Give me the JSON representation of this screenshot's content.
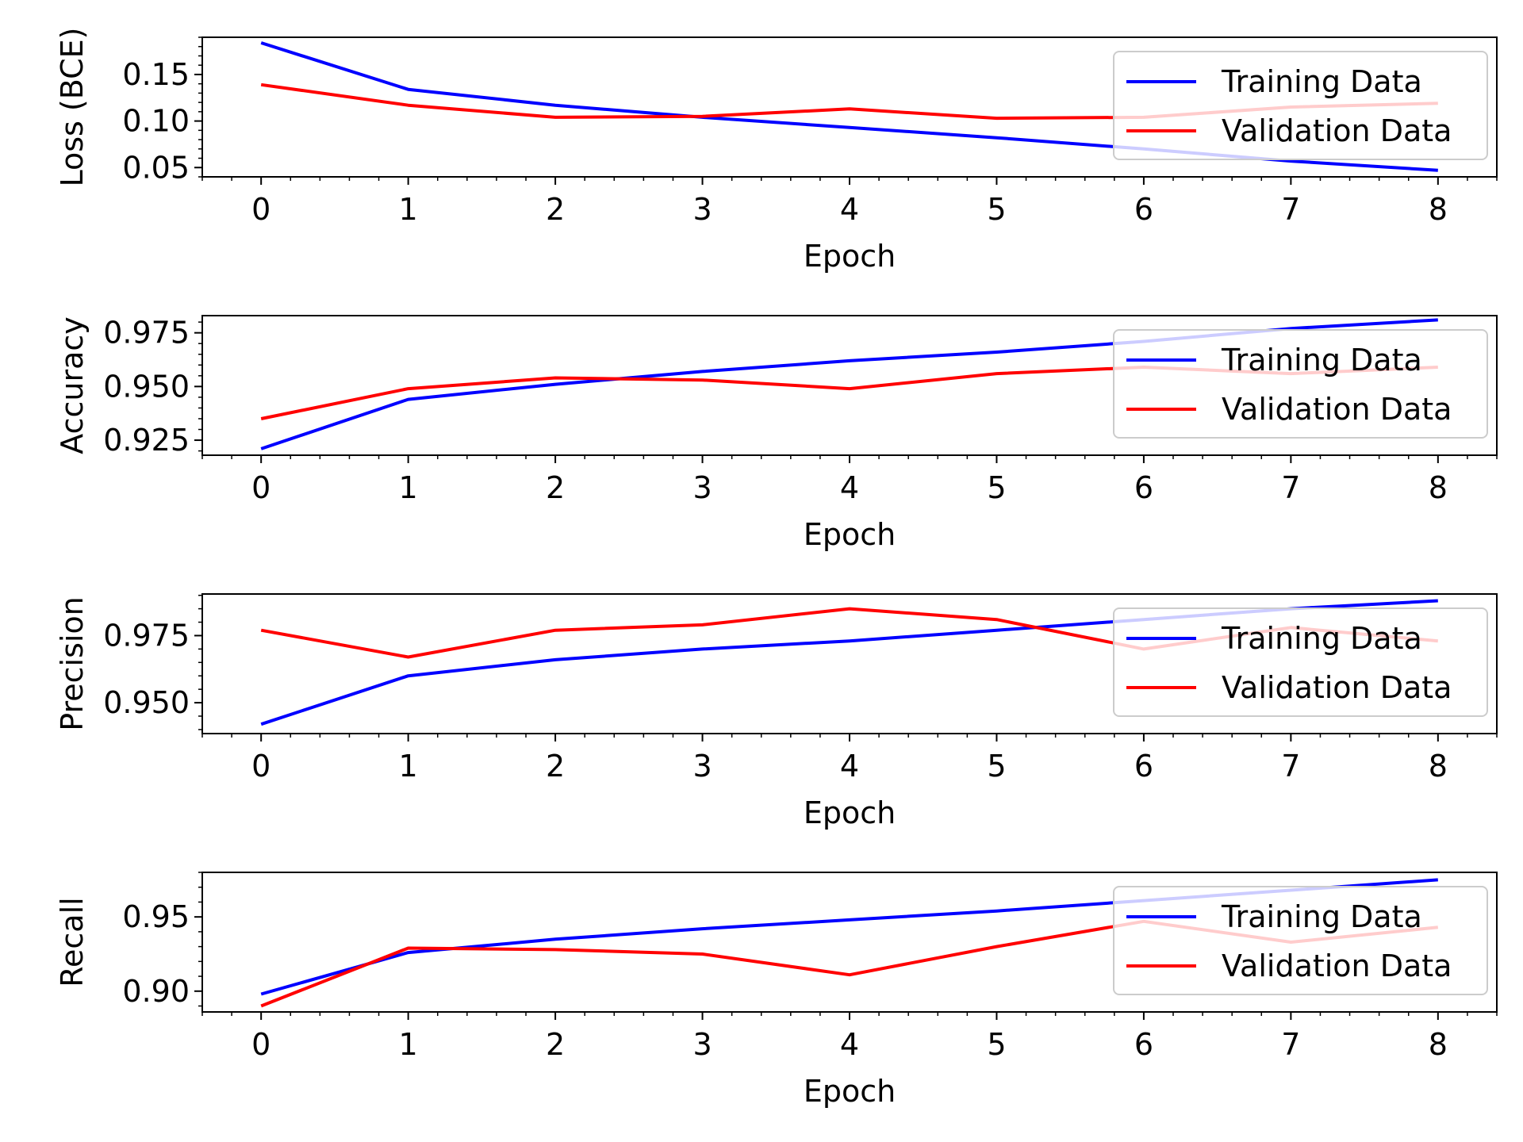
{
  "chart_data": [
    {
      "type": "line",
      "title": "",
      "xlabel": "Epoch",
      "ylabel": "Loss (BCE)",
      "x": [
        0,
        1,
        2,
        3,
        4,
        5,
        6,
        7,
        8
      ],
      "xlim": [
        -0.4,
        8.4
      ],
      "ylim": [
        0.04,
        0.19
      ],
      "yticks": [
        0.05,
        0.1,
        0.15
      ],
      "ytick_labels": [
        "0.05",
        "0.10",
        "0.15"
      ],
      "legend_position": "upper right",
      "grid": false,
      "series": [
        {
          "name": "Training Data",
          "color": "#0000ff",
          "values": [
            0.184,
            0.134,
            0.117,
            0.104,
            0.093,
            0.082,
            0.07,
            0.057,
            0.047
          ]
        },
        {
          "name": "Validation Data",
          "color": "#ff0000",
          "values": [
            0.139,
            0.117,
            0.104,
            0.105,
            0.113,
            0.103,
            0.104,
            0.115,
            0.119
          ]
        }
      ]
    },
    {
      "type": "line",
      "title": "",
      "xlabel": "Epoch",
      "ylabel": "Accuracy",
      "x": [
        0,
        1,
        2,
        3,
        4,
        5,
        6,
        7,
        8
      ],
      "xlim": [
        -0.4,
        8.4
      ],
      "ylim": [
        0.918,
        0.983
      ],
      "yticks": [
        0.925,
        0.95,
        0.975
      ],
      "ytick_labels": [
        "0.925",
        "0.950",
        "0.975"
      ],
      "legend_position": "upper right",
      "grid": false,
      "series": [
        {
          "name": "Training Data",
          "color": "#0000ff",
          "values": [
            0.921,
            0.944,
            0.951,
            0.957,
            0.962,
            0.966,
            0.971,
            0.977,
            0.981
          ]
        },
        {
          "name": "Validation Data",
          "color": "#ff0000",
          "values": [
            0.935,
            0.949,
            0.954,
            0.953,
            0.949,
            0.956,
            0.959,
            0.956,
            0.959
          ]
        }
      ]
    },
    {
      "type": "line",
      "title": "",
      "xlabel": "Epoch",
      "ylabel": "Precision",
      "x": [
        0,
        1,
        2,
        3,
        4,
        5,
        6,
        7,
        8
      ],
      "xlim": [
        -0.4,
        8.4
      ],
      "ylim": [
        0.9385,
        0.9905
      ],
      "yticks": [
        0.95,
        0.975
      ],
      "ytick_labels": [
        "0.950",
        "0.975"
      ],
      "legend_position": "upper right",
      "grid": false,
      "series": [
        {
          "name": "Training Data",
          "color": "#0000ff",
          "values": [
            0.942,
            0.96,
            0.966,
            0.97,
            0.973,
            0.977,
            0.981,
            0.985,
            0.988
          ]
        },
        {
          "name": "Validation Data",
          "color": "#ff0000",
          "values": [
            0.977,
            0.967,
            0.977,
            0.979,
            0.985,
            0.981,
            0.97,
            0.978,
            0.973
          ]
        }
      ]
    },
    {
      "type": "line",
      "title": "",
      "xlabel": "Epoch",
      "ylabel": "Recall",
      "x": [
        0,
        1,
        2,
        3,
        4,
        5,
        6,
        7,
        8
      ],
      "xlim": [
        -0.4,
        8.4
      ],
      "ylim": [
        0.886,
        0.98
      ],
      "yticks": [
        0.9,
        0.95
      ],
      "ytick_labels": [
        "0.90",
        "0.95"
      ],
      "legend_position": "upper right",
      "grid": false,
      "series": [
        {
          "name": "Training Data",
          "color": "#0000ff",
          "values": [
            0.898,
            0.926,
            0.935,
            0.942,
            0.948,
            0.954,
            0.961,
            0.968,
            0.975
          ]
        },
        {
          "name": "Validation Data",
          "color": "#ff0000",
          "values": [
            0.89,
            0.929,
            0.928,
            0.925,
            0.911,
            0.93,
            0.947,
            0.933,
            0.943
          ]
        }
      ]
    }
  ]
}
